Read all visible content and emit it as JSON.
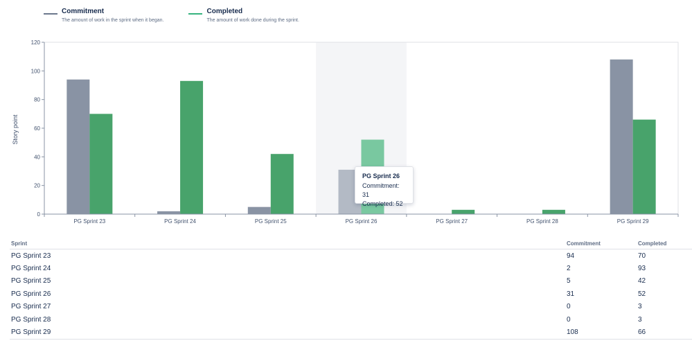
{
  "legend": [
    {
      "name": "Commitment",
      "description": "The amount of work in the sprint when it began.",
      "color": "#8993a4"
    },
    {
      "name": "Completed",
      "description": "The amount of work done during the sprint.",
      "color": "#48a36b"
    }
  ],
  "chart_data": {
    "type": "bar",
    "ylabel": "Story point",
    "xlabel": "",
    "ylim": [
      0,
      120
    ],
    "yticks": [
      0,
      20,
      40,
      60,
      80,
      100,
      120
    ],
    "categories": [
      "PG Sprint 23",
      "PG Sprint 24",
      "PG Sprint 25",
      "PG Sprint 26",
      "PG Sprint 27",
      "PG Sprint 28",
      "PG Sprint 29"
    ],
    "series": [
      {
        "name": "Commitment",
        "values": [
          94,
          2,
          5,
          31,
          0,
          0,
          108
        ],
        "color": "#8993a4"
      },
      {
        "name": "Completed",
        "values": [
          70,
          93,
          42,
          52,
          3,
          3,
          66
        ],
        "color": "#48a36b"
      }
    ],
    "highlighted_category": "PG Sprint 26"
  },
  "tooltip": {
    "title": "PG Sprint 26",
    "commitment": "Commitment: 31",
    "completed": "Completed: 52"
  },
  "table": {
    "headers": [
      "Sprint",
      "Commitment",
      "Completed"
    ],
    "rows": [
      [
        "PG Sprint 23",
        "94",
        "70"
      ],
      [
        "PG Sprint 24",
        "2",
        "93"
      ],
      [
        "PG Sprint 25",
        "5",
        "42"
      ],
      [
        "PG Sprint 26",
        "31",
        "52"
      ],
      [
        "PG Sprint 27",
        "0",
        "3"
      ],
      [
        "PG Sprint 28",
        "0",
        "3"
      ],
      [
        "PG Sprint 29",
        "108",
        "66"
      ]
    ]
  }
}
